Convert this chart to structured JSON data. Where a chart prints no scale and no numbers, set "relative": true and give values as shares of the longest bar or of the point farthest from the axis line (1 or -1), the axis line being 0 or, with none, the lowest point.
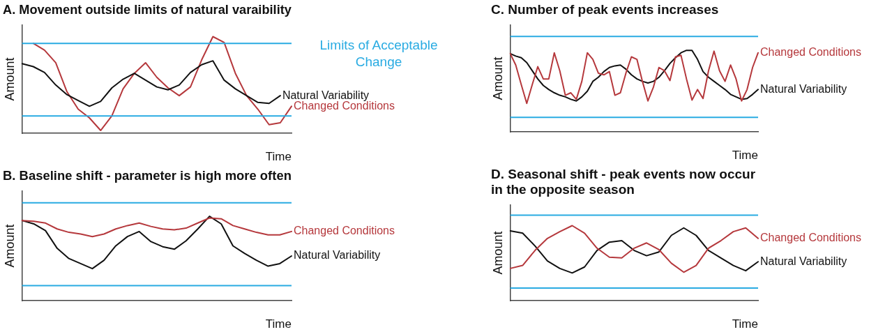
{
  "chart_data": [
    {
      "type": "line",
      "title": "A. Movement outside limits of natural varaibility",
      "xlabel": "Time",
      "ylabel": "Amount",
      "relative": true,
      "categories": [
        null,
        null,
        null,
        null,
        null,
        null,
        null,
        null,
        null,
        null,
        null,
        null,
        null,
        null,
        null,
        null,
        null,
        null,
        null,
        null,
        null,
        null,
        null,
        null,
        null
      ],
      "series": [
        {
          "name": "Natural Variability",
          "color": "#111111",
          "values": [
            0.72,
            0.69,
            0.63,
            0.5,
            0.4,
            0.34,
            0.28,
            0.33,
            0.47,
            0.56,
            0.62,
            0.55,
            0.48,
            0.45,
            0.5,
            0.63,
            0.71,
            0.75,
            0.55,
            0.46,
            0.39,
            0.32,
            0.31,
            0.39,
            null
          ]
        },
        {
          "name": "Changed Conditions",
          "color": "#b5383c",
          "values": [
            null,
            0.93,
            0.86,
            0.73,
            0.43,
            0.25,
            0.16,
            0.03,
            0.18,
            0.46,
            0.62,
            0.73,
            0.58,
            0.47,
            0.39,
            0.48,
            0.76,
            1.0,
            0.94,
            0.62,
            0.39,
            0.25,
            0.09,
            0.11,
            0.28
          ]
        }
      ],
      "ref_lines": [
        {
          "axis": "y",
          "value": 0.93,
          "color": "#29abe2",
          "label": "Limits of Acceptable Change"
        },
        {
          "axis": "y",
          "value": 0.18,
          "color": "#29abe2"
        }
      ]
    },
    {
      "type": "line",
      "title": "B. Baseline shift - parameter is high more often",
      "xlabel": "Time",
      "ylabel": "Amount",
      "relative": true,
      "categories": [
        null,
        null,
        null,
        null,
        null,
        null,
        null,
        null,
        null,
        null,
        null,
        null,
        null,
        null,
        null,
        null,
        null,
        null,
        null,
        null,
        null,
        null,
        null,
        null
      ],
      "series": [
        {
          "name": "Changed Conditions",
          "color": "#b5383c",
          "values": [
            0.95,
            0.94,
            0.92,
            0.85,
            0.81,
            0.79,
            0.76,
            0.79,
            0.85,
            0.89,
            0.92,
            0.88,
            0.85,
            0.84,
            0.86,
            0.92,
            0.98,
            0.97,
            0.89,
            0.85,
            0.81,
            0.78,
            0.78,
            0.82
          ]
        },
        {
          "name": "Natural Variability",
          "color": "#111111",
          "values": [
            0.95,
            0.91,
            0.83,
            0.62,
            0.5,
            0.44,
            0.38,
            0.48,
            0.65,
            0.76,
            0.82,
            0.7,
            0.64,
            0.61,
            0.71,
            0.85,
            1.0,
            0.91,
            0.65,
            0.56,
            0.48,
            0.41,
            0.44,
            0.53
          ]
        }
      ],
      "ref_lines": [
        {
          "axis": "y",
          "value": 1.16,
          "color": "#29abe2"
        },
        {
          "axis": "y",
          "value": 0.18,
          "color": "#29abe2"
        }
      ]
    },
    {
      "type": "line",
      "title": "C. Number of peak events increases",
      "xlabel": "Time",
      "ylabel": "Amount",
      "relative": true,
      "categories": [
        null,
        null,
        null,
        null,
        null,
        null,
        null,
        null,
        null,
        null,
        null,
        null,
        null,
        null,
        null,
        null,
        null,
        null,
        null,
        null,
        null,
        null,
        null,
        null,
        null,
        null,
        null,
        null,
        null,
        null,
        null,
        null,
        null,
        null,
        null,
        null,
        null,
        null,
        null,
        null,
        null,
        null,
        null,
        null,
        null,
        null
      ],
      "series": [
        {
          "name": "Changed Conditions",
          "color": "#b5383c",
          "values": [
            0.96,
            0.82,
            0.58,
            0.35,
            0.58,
            0.8,
            0.65,
            0.65,
            0.97,
            0.75,
            0.45,
            0.48,
            0.4,
            0.62,
            0.97,
            0.89,
            0.72,
            0.7,
            0.74,
            0.45,
            0.48,
            0.72,
            0.92,
            0.89,
            0.62,
            0.38,
            0.55,
            0.79,
            0.75,
            0.63,
            0.92,
            0.94,
            0.65,
            0.39,
            0.52,
            0.41,
            0.75,
            0.99,
            0.75,
            0.62,
            0.82,
            0.65,
            0.38,
            0.52,
            0.79,
            0.97
          ]
        },
        {
          "name": "Natural Variability",
          "color": "#111111",
          "values": [
            0.96,
            0.93,
            0.91,
            0.85,
            0.75,
            0.65,
            0.57,
            0.52,
            0.48,
            0.45,
            0.43,
            0.4,
            0.38,
            0.43,
            0.5,
            0.62,
            0.67,
            0.74,
            0.79,
            0.81,
            0.82,
            0.77,
            0.7,
            0.65,
            0.62,
            0.6,
            0.62,
            0.67,
            0.75,
            0.84,
            0.91,
            0.97,
            1.0,
            1.0,
            0.89,
            0.74,
            0.67,
            0.62,
            0.57,
            0.52,
            0.46,
            0.43,
            0.4,
            0.41,
            0.46,
            0.52
          ]
        }
      ],
      "ref_lines": [
        {
          "axis": "y",
          "value": 1.17,
          "color": "#29abe2"
        },
        {
          "axis": "y",
          "value": 0.18,
          "color": "#29abe2"
        }
      ]
    },
    {
      "type": "line",
      "title": "D. Seasonal shift - peak events now occur\nin the opposite season",
      "xlabel": "Time",
      "ylabel": "Amount",
      "relative": true,
      "categories": [
        null,
        null,
        null,
        null,
        null,
        null,
        null,
        null,
        null,
        null,
        null,
        null,
        null,
        null,
        null,
        null,
        null,
        null,
        null,
        null,
        null
      ],
      "series": [
        {
          "name": "Changed Conditions",
          "color": "#b5383c",
          "values": [
            0.43,
            0.47,
            0.67,
            0.83,
            0.92,
            1.0,
            0.9,
            0.7,
            0.58,
            0.57,
            0.7,
            0.77,
            0.68,
            0.5,
            0.38,
            0.47,
            0.7,
            0.8,
            0.92,
            0.97,
            0.83
          ]
        },
        {
          "name": "Natural Variability",
          "color": "#111111",
          "values": [
            0.93,
            0.9,
            0.73,
            0.53,
            0.43,
            0.37,
            0.45,
            0.67,
            0.78,
            0.8,
            0.67,
            0.6,
            0.65,
            0.87,
            0.97,
            0.87,
            0.67,
            0.57,
            0.47,
            0.4,
            0.52
          ]
        }
      ],
      "ref_lines": [
        {
          "axis": "y",
          "value": 1.14,
          "color": "#29abe2"
        },
        {
          "axis": "y",
          "value": 0.17,
          "color": "#29abe2"
        }
      ]
    }
  ]
}
